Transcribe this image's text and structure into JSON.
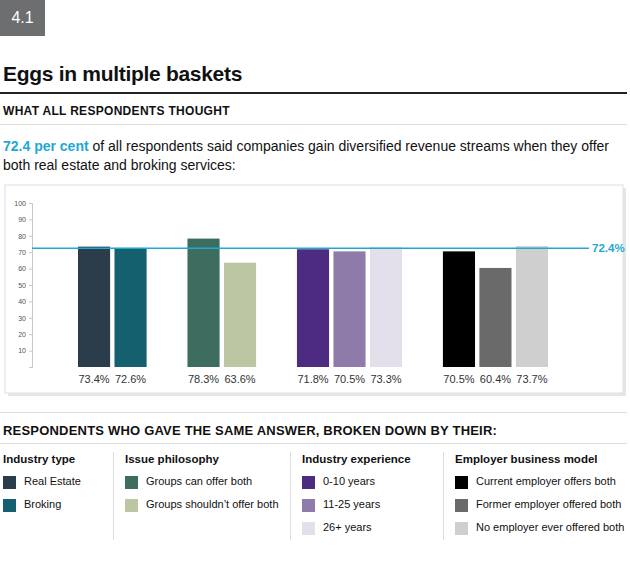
{
  "chart_data": {
    "type": "bar",
    "badge": "4.1",
    "title": "Eggs in multiple baskets",
    "section_label": "WHAT ALL RESPONDENTS THOUGHT",
    "subtitle_highlight": "72.4 per cent",
    "subtitle": "of all respondents said companies gain diversified revenue streams when they offer both real estate and broking services:",
    "legend_title": "RESPONDENTS WHO GAVE THE SAME ANSWER, BROKEN DOWN BY THEIR:",
    "ylim": [
      0,
      100
    ],
    "yticks": [
      10,
      20,
      30,
      40,
      50,
      60,
      70,
      80,
      90,
      100
    ],
    "grid": false,
    "data_labels": true,
    "reference_line": {
      "value": 72.4,
      "label": "72.4%",
      "color": "#1fa8d4"
    },
    "groups": [
      {
        "title": "Industry type",
        "categories": [
          "Real Estate",
          "Broking"
        ],
        "values": [
          73.4,
          72.6
        ],
        "value_labels": [
          "73.4%",
          "72.6%"
        ],
        "colors": [
          "#2b3d4b",
          "#15606f"
        ]
      },
      {
        "title": "Issue philosophy",
        "categories": [
          "Groups can offer both",
          "Groups shouldn’t offer both"
        ],
        "values": [
          78.3,
          63.6
        ],
        "value_labels": [
          "78.3%",
          "63.6%"
        ],
        "colors": [
          "#3c6d5f",
          "#bcc6a3"
        ]
      },
      {
        "title": "Industry experience",
        "categories": [
          "0-10 years",
          "11-25 years",
          "26+ years"
        ],
        "values": [
          71.8,
          70.5,
          73.3
        ],
        "value_labels": [
          "71.8%",
          "70.5%",
          "73.3%"
        ],
        "colors": [
          "#4c2b80",
          "#8f7ba9",
          "#e3e0ec"
        ]
      },
      {
        "title": "Employer business model",
        "categories": [
          "Current employer offers both",
          "Former employer offered both",
          "No employer ever offered both"
        ],
        "values": [
          70.5,
          60.4,
          73.7
        ],
        "value_labels": [
          "70.5%",
          "60.4%",
          "73.7%"
        ],
        "colors": [
          "#000000",
          "#6a6a6a",
          "#cfcfcf"
        ]
      }
    ]
  }
}
